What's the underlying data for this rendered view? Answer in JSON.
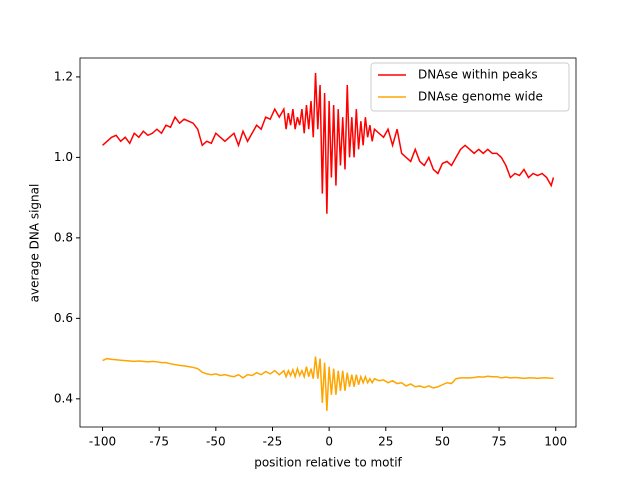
{
  "chart_data": {
    "type": "line",
    "xlabel": "position relative to motif",
    "ylabel": "average DNA signal",
    "x": [
      -100,
      -98,
      -96,
      -94,
      -92,
      -90,
      -88,
      -86,
      -84,
      -82,
      -80,
      -78,
      -76,
      -74,
      -72,
      -70,
      -68,
      -66,
      -64,
      -62,
      -60,
      -58,
      -56,
      -54,
      -52,
      -50,
      -48,
      -46,
      -44,
      -42,
      -40,
      -38,
      -36,
      -34,
      -32,
      -30,
      -28,
      -26,
      -24,
      -22,
      -20,
      -19,
      -18,
      -17,
      -16,
      -15,
      -14,
      -13,
      -12,
      -11,
      -10,
      -9,
      -8,
      -7,
      -6,
      -5,
      -4,
      -3,
      -2,
      -1,
      0,
      1,
      2,
      3,
      4,
      5,
      6,
      7,
      8,
      9,
      10,
      11,
      12,
      13,
      14,
      15,
      16,
      17,
      18,
      19,
      20,
      22,
      24,
      26,
      28,
      30,
      32,
      34,
      36,
      38,
      40,
      42,
      44,
      46,
      48,
      50,
      52,
      54,
      56,
      58,
      60,
      62,
      64,
      66,
      68,
      70,
      72,
      74,
      76,
      78,
      80,
      82,
      84,
      86,
      88,
      90,
      92,
      94,
      96,
      98,
      99
    ],
    "series": [
      {
        "name": "DNAse within peaks",
        "color": "#ff0000",
        "values": [
          1.03,
          1.04,
          1.05,
          1.055,
          1.04,
          1.05,
          1.035,
          1.06,
          1.05,
          1.065,
          1.055,
          1.06,
          1.07,
          1.06,
          1.08,
          1.075,
          1.1,
          1.085,
          1.095,
          1.09,
          1.085,
          1.07,
          1.03,
          1.04,
          1.035,
          1.06,
          1.05,
          1.04,
          1.05,
          1.06,
          1.03,
          1.065,
          1.04,
          1.06,
          1.08,
          1.07,
          1.1,
          1.095,
          1.12,
          1.1,
          1.12,
          1.07,
          1.11,
          1.08,
          1.12,
          1.07,
          1.1,
          1.08,
          1.12,
          1.06,
          1.13,
          1.07,
          1.14,
          1.05,
          1.21,
          1.07,
          1.18,
          0.91,
          1.16,
          0.86,
          1.14,
          0.95,
          1.13,
          0.93,
          1.12,
          0.98,
          1.1,
          0.97,
          1.18,
          1.0,
          1.1,
          1.0,
          1.12,
          1.02,
          1.09,
          1.03,
          1.1,
          1.05,
          1.08,
          1.04,
          1.07,
          1.06,
          1.05,
          1.07,
          1.03,
          1.07,
          1.01,
          1.0,
          0.99,
          1.02,
          0.99,
          0.98,
          1.0,
          0.97,
          0.96,
          0.985,
          0.99,
          0.98,
          1.0,
          1.02,
          1.03,
          1.02,
          1.01,
          1.02,
          1.01,
          1.02,
          1.01,
          1.01,
          1.0,
          0.98,
          0.95,
          0.96,
          0.955,
          0.97,
          0.95,
          0.96,
          0.955,
          0.96,
          0.95,
          0.93,
          0.95
        ]
      },
      {
        "name": "DNAse genome wide",
        "color": "#ffa500",
        "values": [
          0.495,
          0.5,
          0.498,
          0.497,
          0.496,
          0.495,
          0.494,
          0.493,
          0.494,
          0.493,
          0.492,
          0.493,
          0.492,
          0.49,
          0.49,
          0.487,
          0.485,
          0.483,
          0.482,
          0.48,
          0.478,
          0.475,
          0.466,
          0.462,
          0.46,
          0.462,
          0.458,
          0.46,
          0.457,
          0.455,
          0.46,
          0.452,
          0.46,
          0.458,
          0.465,
          0.46,
          0.468,
          0.462,
          0.47,
          0.46,
          0.47,
          0.455,
          0.47,
          0.458,
          0.472,
          0.455,
          0.475,
          0.458,
          0.47,
          0.455,
          0.48,
          0.455,
          0.475,
          0.45,
          0.505,
          0.45,
          0.5,
          0.39,
          0.49,
          0.37,
          0.48,
          0.41,
          0.475,
          0.41,
          0.47,
          0.42,
          0.47,
          0.42,
          0.465,
          0.43,
          0.46,
          0.43,
          0.46,
          0.435,
          0.455,
          0.44,
          0.455,
          0.44,
          0.45,
          0.44,
          0.45,
          0.445,
          0.447,
          0.44,
          0.445,
          0.438,
          0.44,
          0.432,
          0.437,
          0.43,
          0.432,
          0.428,
          0.432,
          0.427,
          0.43,
          0.435,
          0.44,
          0.438,
          0.45,
          0.452,
          0.452,
          0.452,
          0.453,
          0.455,
          0.454,
          0.456,
          0.455,
          0.455,
          0.452,
          0.454,
          0.452,
          0.453,
          0.452,
          0.451,
          0.452,
          0.452,
          0.451,
          0.452,
          0.452,
          0.451,
          0.451
        ]
      }
    ],
    "xlim": [
      -109.95,
      108.95
    ],
    "xticks": [
      -100,
      -75,
      -50,
      -25,
      0,
      25,
      50,
      75,
      100
    ],
    "ylim": [
      0.33,
      1.247
    ],
    "yticks": [
      0.4,
      0.6,
      0.8,
      {
        "value": 1,
        "label": "1.0"
      },
      1.2
    ],
    "grid": false,
    "legend": "upper right"
  }
}
